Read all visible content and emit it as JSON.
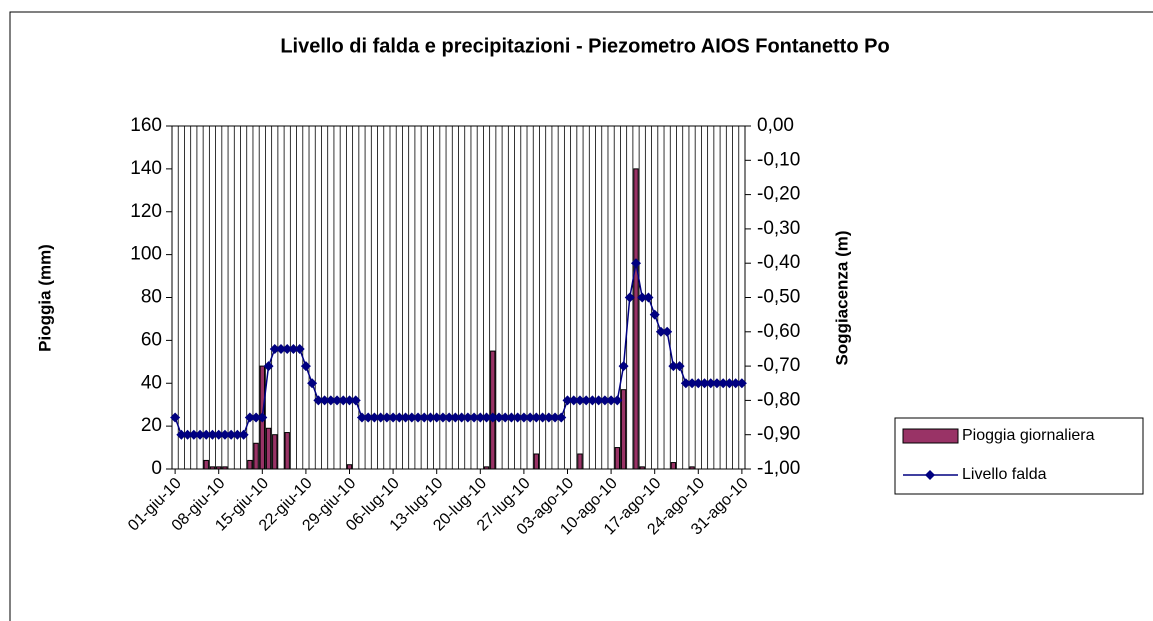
{
  "chart_data": {
    "type": "bar_line",
    "title": "Livello di falda e precipitazioni - Piezometro AIOS Fontanetto Po",
    "y_label": "Pioggia (mm)",
    "y2_label": "Soggiacenza (m)",
    "categories": [
      "01-giu-10",
      null,
      null,
      null,
      null,
      null,
      null,
      "08-giu-10",
      null,
      null,
      null,
      null,
      null,
      null,
      "15-giu-10",
      null,
      null,
      null,
      null,
      null,
      null,
      "22-giu-10",
      null,
      null,
      null,
      null,
      null,
      null,
      "29-giu-10",
      null,
      null,
      null,
      null,
      null,
      null,
      "06-lug-10",
      null,
      null,
      null,
      null,
      null,
      null,
      "13-lug-10",
      null,
      null,
      null,
      null,
      null,
      null,
      "20-lug-10",
      null,
      null,
      null,
      null,
      null,
      null,
      "27-lug-10",
      null,
      null,
      null,
      null,
      null,
      null,
      "03-ago-10",
      null,
      null,
      null,
      null,
      null,
      null,
      "10-ago-10",
      null,
      null,
      null,
      null,
      null,
      null,
      "17-ago-10",
      null,
      null,
      null,
      null,
      null,
      null,
      "24-ago-10",
      null,
      null,
      null,
      null,
      null,
      null,
      "31-ago-10"
    ],
    "series": [
      {
        "name": "Pioggia giornaliera",
        "color": "#993366",
        "type": "bar",
        "values": [
          0,
          0,
          0,
          0,
          0,
          4,
          1,
          1,
          1,
          0,
          0,
          0,
          4,
          12,
          48,
          19,
          16,
          0,
          17,
          0,
          0,
          0,
          0,
          0,
          0,
          0,
          0,
          0,
          2,
          0,
          0,
          0,
          0,
          0,
          0,
          0,
          0,
          0,
          0,
          0,
          0,
          0,
          0,
          0,
          0,
          0,
          0,
          0,
          0,
          0,
          1,
          55,
          0,
          0,
          0,
          0,
          0,
          0,
          7,
          0,
          0,
          0,
          0,
          0,
          0,
          7,
          0,
          0,
          0,
          0,
          0,
          10,
          37,
          0,
          140,
          1,
          0,
          0,
          0,
          0,
          3,
          0,
          0,
          1,
          0,
          0,
          0,
          0,
          0,
          0,
          0,
          0
        ]
      },
      {
        "name": "Livello falda",
        "color": "#000080",
        "type": "line",
        "axis": "y2",
        "values": [
          -0.85,
          -0.9,
          -0.9,
          -0.9,
          -0.9,
          -0.9,
          -0.9,
          -0.9,
          -0.9,
          -0.9,
          -0.9,
          -0.9,
          -0.85,
          -0.85,
          -0.85,
          -0.7,
          -0.65,
          -0.65,
          -0.65,
          -0.65,
          -0.65,
          -0.7,
          -0.75,
          -0.8,
          -0.8,
          -0.8,
          -0.8,
          -0.8,
          -0.8,
          -0.8,
          -0.85,
          -0.85,
          -0.85,
          -0.85,
          -0.85,
          -0.85,
          -0.85,
          -0.85,
          -0.85,
          -0.85,
          -0.85,
          -0.85,
          -0.85,
          -0.85,
          -0.85,
          -0.85,
          -0.85,
          -0.85,
          -0.85,
          -0.85,
          -0.85,
          -0.85,
          -0.85,
          -0.85,
          -0.85,
          -0.85,
          -0.85,
          -0.85,
          -0.85,
          -0.85,
          -0.85,
          -0.85,
          -0.85,
          -0.8,
          -0.8,
          -0.8,
          -0.8,
          -0.8,
          -0.8,
          -0.8,
          -0.8,
          -0.8,
          -0.7,
          -0.5,
          -0.4,
          -0.5,
          -0.5,
          -0.55,
          -0.6,
          -0.6,
          -0.7,
          -0.7,
          -0.75,
          -0.75,
          -0.75,
          -0.75,
          -0.75,
          -0.75,
          -0.75,
          -0.75,
          -0.75,
          -0.75
        ]
      }
    ],
    "ylim": [
      0,
      160
    ],
    "yticks": [
      0,
      20,
      40,
      60,
      80,
      100,
      120,
      140,
      160
    ],
    "y2lim": [
      -1,
      0
    ],
    "y2ticks": [
      {
        "value": -1,
        "label": "-1,00"
      },
      {
        "value": -0.9,
        "label": "-0,90"
      },
      {
        "value": -0.8,
        "label": "-0,80"
      },
      {
        "value": -0.7,
        "label": "-0,70"
      },
      {
        "value": -0.6,
        "label": "-0,60"
      },
      {
        "value": -0.5,
        "label": "-0,50"
      },
      {
        "value": -0.4,
        "label": "-0,40"
      },
      {
        "value": -0.3,
        "label": "-0,30"
      },
      {
        "value": -0.2,
        "label": "-0,20"
      },
      {
        "value": -0.1,
        "label": "-0,10"
      },
      {
        "value": 0,
        "label": "0,00"
      }
    ],
    "xgrid": true,
    "legend": "right"
  }
}
